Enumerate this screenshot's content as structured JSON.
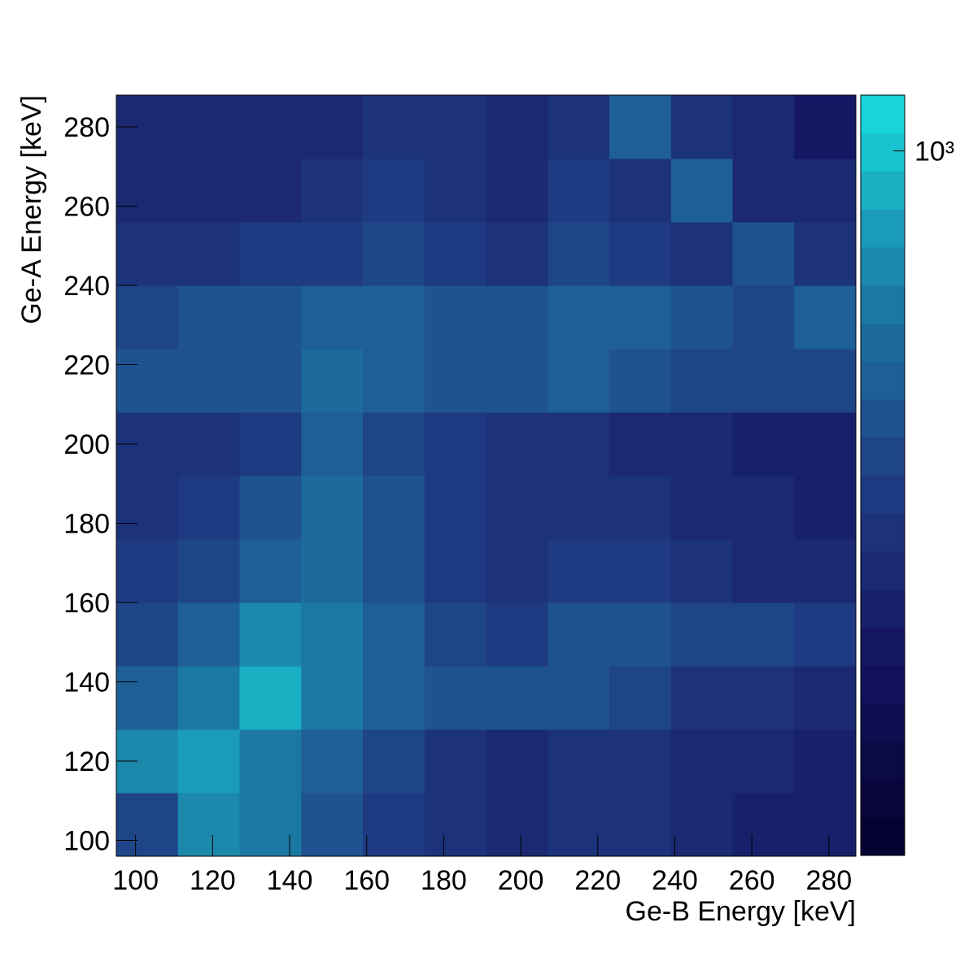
{
  "chart_data": {
    "type": "heatmap",
    "x_label": "Ge-B Energy [keV]",
    "y_label": "Ge-A Energy [keV]",
    "xbins": [
      95,
      111,
      127,
      143,
      159,
      175,
      191,
      207,
      223,
      239,
      255,
      271,
      287
    ],
    "ybins": [
      96,
      112,
      128,
      144,
      160,
      176,
      192,
      208,
      224,
      240,
      256,
      272,
      288
    ],
    "z": [
      [
        350,
        700,
        600,
        400,
        320,
        280,
        260,
        300,
        290,
        240,
        230,
        220
      ],
      [
        700,
        800,
        600,
        450,
        360,
        300,
        270,
        300,
        290,
        250,
        240,
        230
      ],
      [
        500,
        600,
        900,
        600,
        480,
        420,
        400,
        420,
        380,
        300,
        280,
        270
      ],
      [
        380,
        450,
        650,
        600,
        450,
        380,
        340,
        420,
        400,
        380,
        360,
        340
      ],
      [
        330,
        380,
        500,
        550,
        420,
        340,
        300,
        330,
        320,
        280,
        270,
        260
      ],
      [
        300,
        330,
        400,
        520,
        400,
        320,
        290,
        300,
        280,
        250,
        240,
        230
      ],
      [
        280,
        300,
        340,
        450,
        380,
        310,
        280,
        290,
        270,
        240,
        230,
        220
      ],
      [
        400,
        420,
        440,
        520,
        480,
        420,
        400,
        450,
        430,
        380,
        360,
        350
      ],
      [
        380,
        400,
        420,
        460,
        470,
        420,
        400,
        480,
        450,
        400,
        380,
        500
      ],
      [
        300,
        300,
        310,
        330,
        380,
        330,
        300,
        380,
        340,
        300,
        400,
        280
      ],
      [
        260,
        260,
        270,
        280,
        320,
        300,
        270,
        330,
        300,
        500,
        270,
        240
      ],
      [
        240,
        240,
        250,
        260,
        300,
        280,
        260,
        300,
        500,
        280,
        240,
        200
      ]
    ],
    "xlim": [
      95,
      287
    ],
    "ylim": [
      96,
      288
    ],
    "xticks": [
      100,
      120,
      140,
      160,
      180,
      200,
      220,
      240,
      260,
      280
    ],
    "yticks": [
      100,
      120,
      140,
      160,
      180,
      200,
      220,
      240,
      260,
      280
    ],
    "zlim": [
      100,
      1200
    ],
    "zlog": true,
    "zticks": [
      {
        "value": 1000,
        "label": "10³"
      }
    ],
    "palette": [
      "#02002e",
      "#14125e",
      "#1f3f86",
      "#1b7ea6",
      "#18e0e0"
    ],
    "palette_steps": 20
  }
}
